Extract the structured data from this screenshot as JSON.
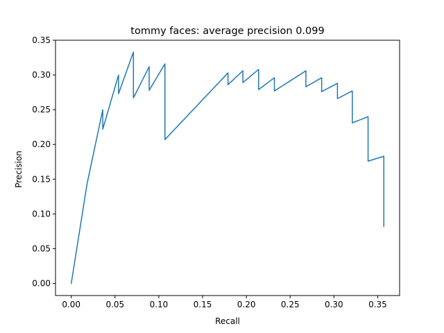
{
  "chart_data": {
    "type": "line",
    "title": "tommy faces: average precision 0.099",
    "xlabel": "Recall",
    "ylabel": "Precision",
    "xlim": [
      -0.018,
      0.375
    ],
    "ylim": [
      -0.0175,
      0.35
    ],
    "xticks": [
      0.0,
      0.05,
      0.1,
      0.15,
      0.2,
      0.25,
      0.3,
      0.35
    ],
    "xtick_labels": [
      "0.00",
      "0.05",
      "0.10",
      "0.15",
      "0.20",
      "0.25",
      "0.30",
      "0.35"
    ],
    "yticks": [
      0.0,
      0.05,
      0.1,
      0.15,
      0.2,
      0.25,
      0.3,
      0.35
    ],
    "ytick_labels": [
      "0.00",
      "0.05",
      "0.10",
      "0.15",
      "0.20",
      "0.25",
      "0.30",
      "0.35"
    ],
    "grid": false,
    "legend": "none",
    "series": [
      {
        "color": "#1f77b4",
        "x": [
          0.0,
          0.018,
          0.036,
          0.036,
          0.054,
          0.054,
          0.071,
          0.071,
          0.089,
          0.089,
          0.107,
          0.107,
          0.179,
          0.179,
          0.196,
          0.196,
          0.214,
          0.214,
          0.232,
          0.232,
          0.268,
          0.268,
          0.286,
          0.286,
          0.304,
          0.304,
          0.321,
          0.321,
          0.339,
          0.339,
          0.357,
          0.357
        ],
        "y": [
          0.0,
          0.143,
          0.25,
          0.222,
          0.3,
          0.273,
          0.333,
          0.267,
          0.312,
          0.278,
          0.316,
          0.207,
          0.303,
          0.286,
          0.306,
          0.289,
          0.308,
          0.279,
          0.296,
          0.277,
          0.306,
          0.283,
          0.296,
          0.276,
          0.288,
          0.266,
          0.277,
          0.231,
          0.24,
          0.176,
          0.183,
          0.082
        ]
      }
    ]
  }
}
